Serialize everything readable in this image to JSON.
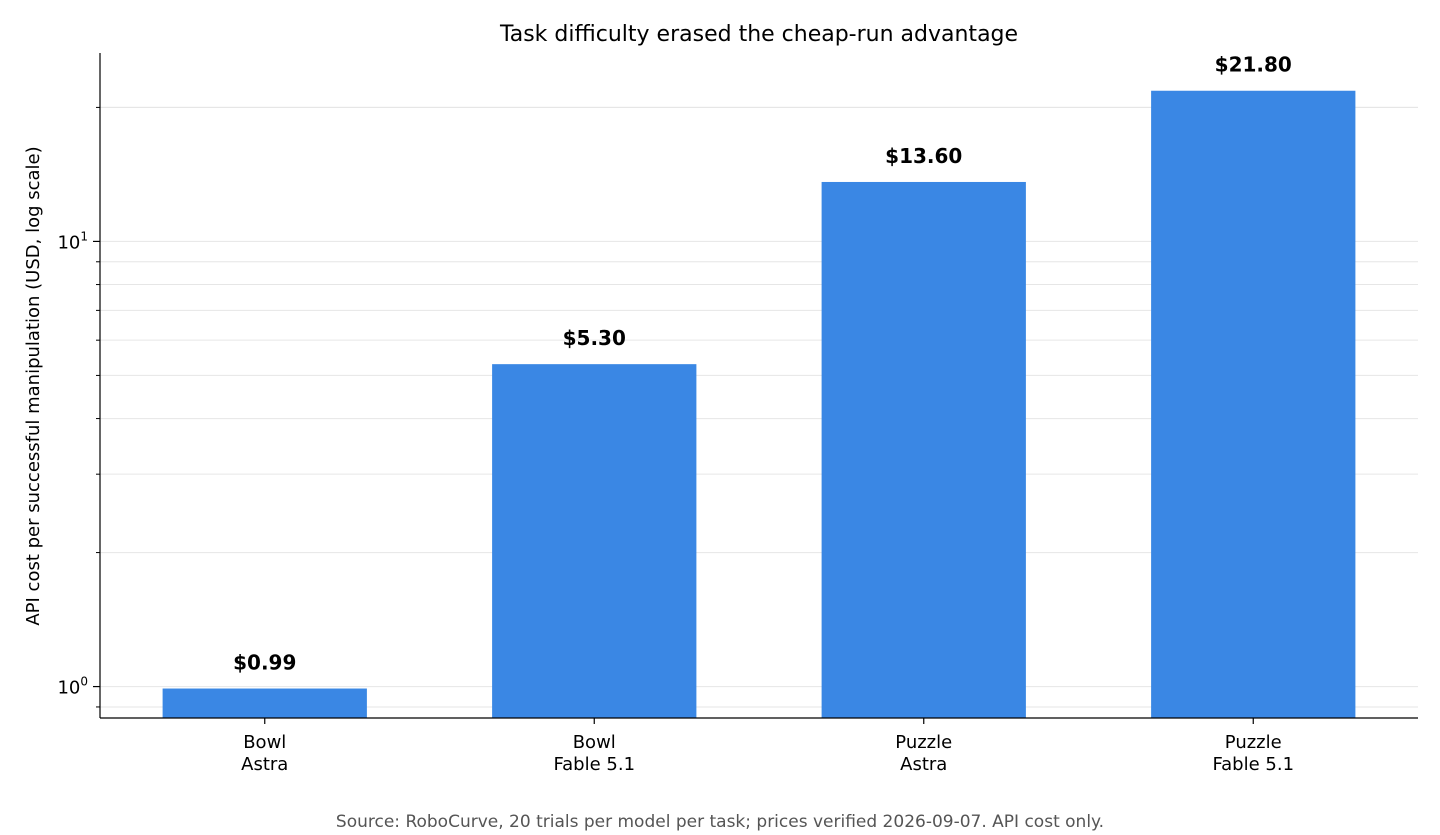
{
  "chart_data": {
    "type": "bar",
    "title": "Task difficulty erased the cheap-run advantage",
    "ylabel": "API cost per successful manipulation (USD, log scale)",
    "xlabel": "",
    "yscale": "log",
    "ylim": [
      0.85,
      26.5
    ],
    "yticks": [
      {
        "value": 1,
        "base": "10",
        "exp": "0"
      },
      {
        "value": 10,
        "base": "10",
        "exp": "1"
      }
    ],
    "grid": "horizontal, major and minor",
    "categories": [
      [
        "Bowl",
        "Astra"
      ],
      [
        "Bowl",
        "Fable 5.1"
      ],
      [
        "Puzzle",
        "Astra"
      ],
      [
        "Puzzle",
        "Fable 5.1"
      ]
    ],
    "values": [
      0.99,
      5.3,
      13.6,
      21.8
    ],
    "value_labels": [
      "$0.99",
      "$5.30",
      "$13.60",
      "$21.80"
    ],
    "bar_color": "#3a87e4",
    "source": "Source: RoboCurve, 20 trials per model per task; prices verified 2026-09-07. API cost only."
  }
}
